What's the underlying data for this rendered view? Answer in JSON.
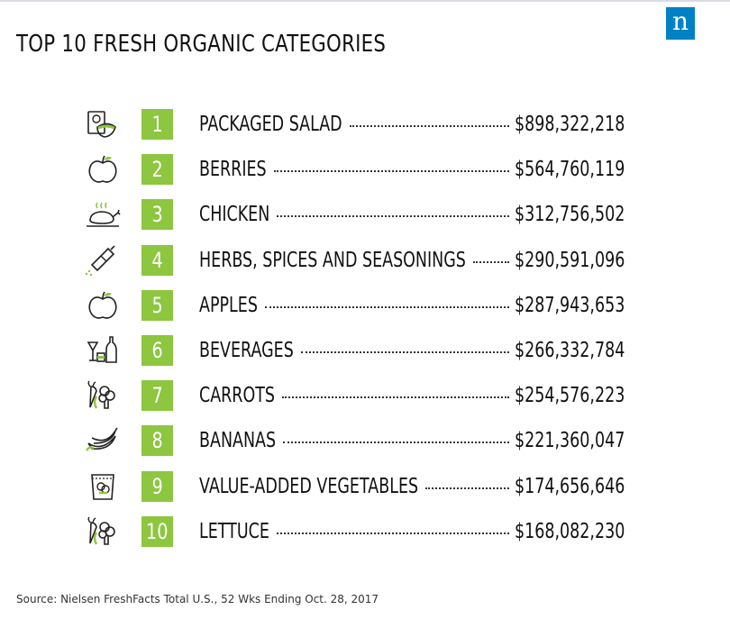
{
  "brand": {
    "logo_letter": "n",
    "logo_color": "#0081c6",
    "accent_color": "#8dc63f"
  },
  "chart_data": {
    "type": "table",
    "title": "TOP 10 FRESH ORGANIC CATEGORIES",
    "source": "Source: Nielsen FreshFacts Total U.S., 52 Wks Ending Oct. 28, 2017",
    "rows": [
      {
        "rank": "1",
        "category": "PACKAGED SALAD",
        "value": 898322218,
        "value_label": "$898,322,218",
        "icon": "packaged-salad-icon"
      },
      {
        "rank": "2",
        "category": "BERRIES",
        "value": 564760119,
        "value_label": "$564,760,119",
        "icon": "apple-icon"
      },
      {
        "rank": "3",
        "category": "CHICKEN",
        "value": 312756502,
        "value_label": "$312,756,502",
        "icon": "roast-chicken-icon"
      },
      {
        "rank": "4",
        "category": "HERBS, SPICES AND SEASONINGS",
        "value": 290591096,
        "value_label": "$290,591,096",
        "icon": "pepper-grinder-icon"
      },
      {
        "rank": "5",
        "category": "APPLES",
        "value": 287943653,
        "value_label": "$287,943,653",
        "icon": "apple-icon"
      },
      {
        "rank": "6",
        "category": "BEVERAGES",
        "value": 266332784,
        "value_label": "$266,332,784",
        "icon": "beverages-icon"
      },
      {
        "rank": "7",
        "category": "CARROTS",
        "value": 254576223,
        "value_label": "$254,576,223",
        "icon": "carrot-broccoli-icon"
      },
      {
        "rank": "8",
        "category": "BANANAS",
        "value": 221360047,
        "value_label": "$221,360,047",
        "icon": "bananas-icon"
      },
      {
        "rank": "9",
        "category": "VALUE-ADDED VEGETABLES",
        "value": 174656646,
        "value_label": "$174,656,646",
        "icon": "vegetable-bag-icon"
      },
      {
        "rank": "10",
        "category": "LETTUCE",
        "value": 168082230,
        "value_label": "$168,082,230",
        "icon": "carrot-broccoli-icon"
      }
    ]
  }
}
